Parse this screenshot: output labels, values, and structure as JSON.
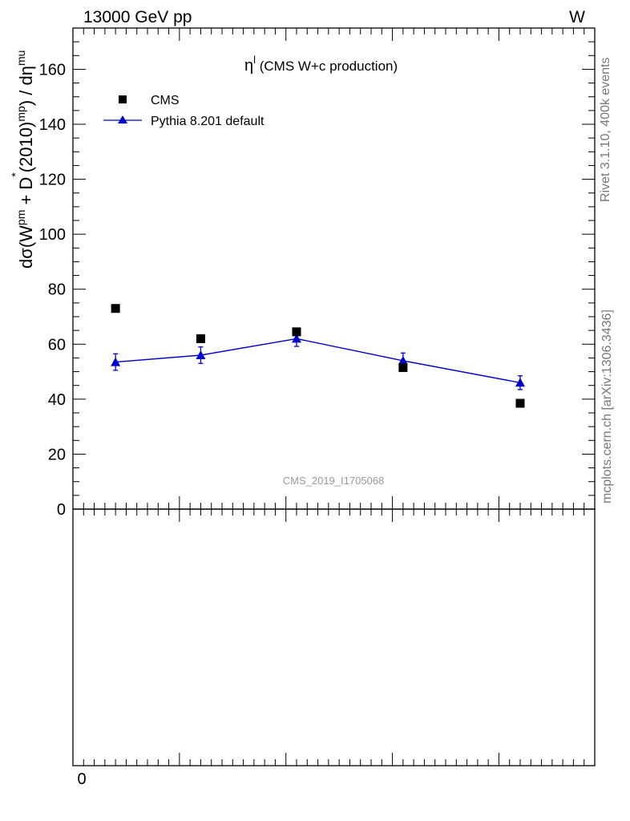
{
  "header": {
    "energy_label": "13000 GeV pp",
    "process_label": "W"
  },
  "side_labels": {
    "rivet": "Rivet 3.1.10,  400k events",
    "mcplots": "mcplots.cern.ch [arXiv:1306.3436]"
  },
  "analysis_id": "CMS_2019_I1705068",
  "chart_data": {
    "type": "scatter",
    "title_symbol": "η",
    "title_sup": "l",
    "title_rest": " (CMS W+c production)",
    "ylabel": "dσ(W^pm + D^*(2010)^mp) / dη^mu",
    "ylim": [
      0,
      175
    ],
    "yticks": [
      0,
      20,
      40,
      60,
      80,
      100,
      120,
      140,
      160
    ],
    "x": [
      0.2,
      0.6,
      1.05,
      1.55,
      2.1
    ],
    "xlim": [
      0,
      2.45
    ],
    "ratio_xtick_label": "0",
    "legend_position": "top-left",
    "series": [
      {
        "name": "CMS",
        "marker": "square",
        "color": "#000000",
        "values": [
          73,
          62,
          64.5,
          51.5,
          38.5
        ],
        "errors": [
          0,
          0,
          0,
          0,
          0
        ]
      },
      {
        "name": "Pythia 8.201 default",
        "marker": "triangle",
        "color": "#0000cc",
        "values": [
          53.5,
          56.0,
          62.0,
          54.0,
          46.0
        ],
        "errors": [
          3.0,
          3.0,
          2.8,
          2.8,
          2.5
        ]
      }
    ]
  }
}
